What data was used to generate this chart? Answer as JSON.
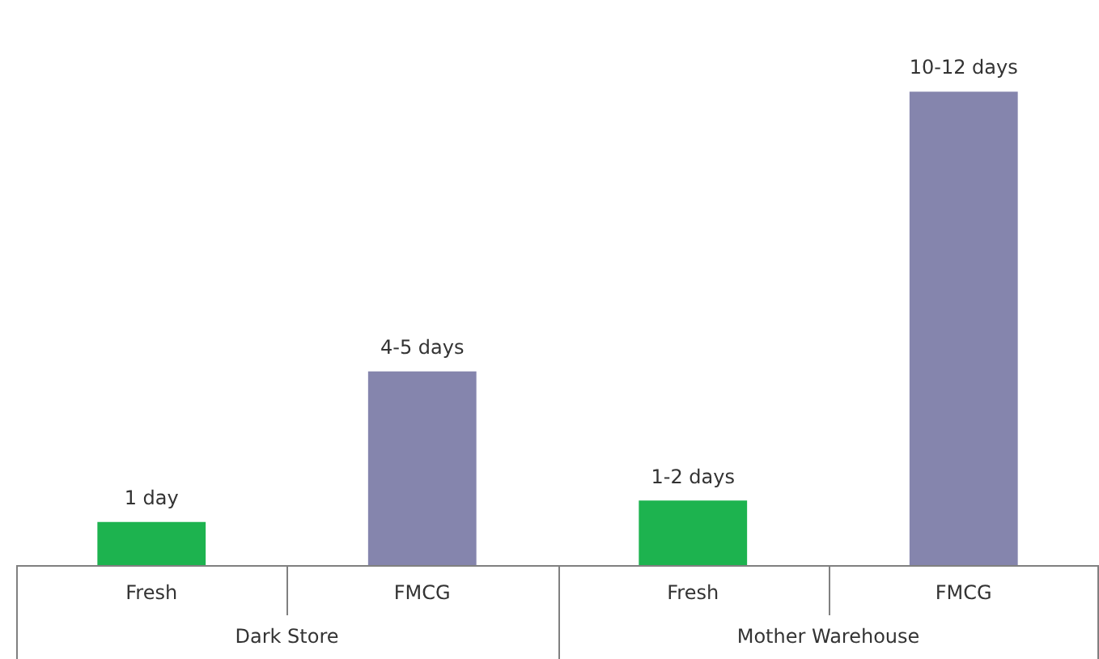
{
  "chart_data": {
    "type": "bar",
    "categories": [
      "Fresh",
      "FMCG",
      "Fresh",
      "FMCG"
    ],
    "values": [
      1,
      4.5,
      1.5,
      11
    ],
    "colors": [
      "#1db34f",
      "#8585ad",
      "#1db34f",
      "#8585ad"
    ],
    "value_labels": [
      "1 day",
      "4-5 days",
      "1-2 days",
      "10-12 days"
    ],
    "annotations": [
      "Dark Store",
      "Mother Warehouse"
    ]
  }
}
